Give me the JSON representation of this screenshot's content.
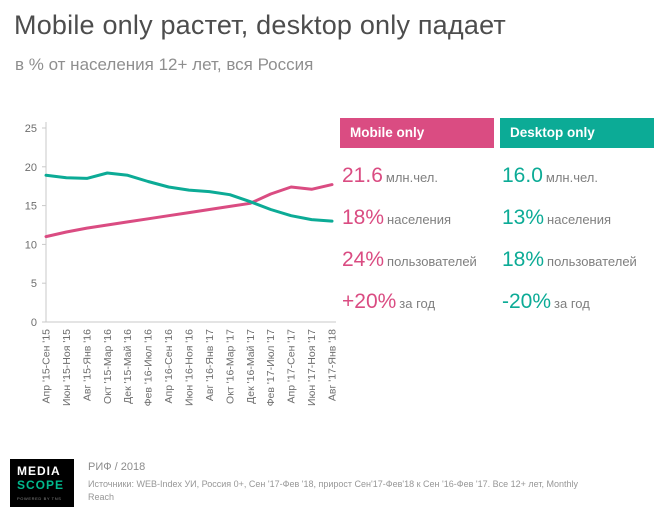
{
  "header": {
    "title": "Mobile only растет, desktop only падает",
    "subtitle": "в % от населения 12+ лет, вся Россия"
  },
  "chart_data": {
    "type": "line",
    "title": "",
    "xlabel": "",
    "ylabel": "",
    "ylim": [
      0,
      25
    ],
    "yticks": [
      0,
      5,
      10,
      15,
      20,
      25
    ],
    "grid": false,
    "legend": "none",
    "categories": [
      "Апр '15-Сен '15",
      "Июн '15-Ноя '15",
      "Авг '15-Янв '16",
      "Окт '15-Мар '16",
      "Дек '15-Май '16",
      "Фев '16-Июл '16",
      "Апр '16-Сен '16",
      "Июн '16-Ноя '16",
      "Авг '16-Янв '17",
      "Окт '16-Мар '17",
      "Дек '16-Май '17",
      "Фев '17-Июл '17",
      "Апр '17-Сен '17",
      "Июн '17-Ноя '17",
      "Авг '17-Янв '18"
    ],
    "series": [
      {
        "name": "Mobile only",
        "color": "#da4c82",
        "values": [
          11.0,
          11.6,
          12.1,
          12.5,
          12.9,
          13.3,
          13.7,
          14.1,
          14.5,
          14.9,
          15.3,
          16.5,
          17.4,
          17.1,
          17.7
        ]
      },
      {
        "name": "Desktop only",
        "color": "#0cab96",
        "values": [
          18.9,
          18.6,
          18.5,
          19.2,
          18.9,
          18.1,
          17.4,
          17.0,
          16.8,
          16.4,
          15.5,
          14.5,
          13.7,
          13.2,
          13.0
        ]
      }
    ]
  },
  "cards": [
    {
      "title": "Mobile only",
      "color": "#da4c82",
      "stats": [
        {
          "value": "21.6",
          "unit": "млн.чел."
        },
        {
          "value": "18%",
          "unit": "населения"
        },
        {
          "value": "24%",
          "unit": "пользователей"
        },
        {
          "value": "+20%",
          "unit": "за год"
        }
      ]
    },
    {
      "title": "Desktop only",
      "color": "#0cab96",
      "stats": [
        {
          "value": "16.0",
          "unit": "млн.чел."
        },
        {
          "value": "13%",
          "unit": "населения"
        },
        {
          "value": "18%",
          "unit": "пользователей"
        },
        {
          "value": "-20%",
          "unit": "за год"
        }
      ]
    }
  ],
  "footer": {
    "logo": {
      "line1": "MEDIA",
      "line2": "SCOPE",
      "tagline": "POWERED BY TNS"
    },
    "event": "РИФ / 2018",
    "source": "Источники: WEB-Index УИ, Россия 0+, Сен '17-Фев '18, прирост Сен'17-Фев'18 к Сен '16-Фев '17. Все 12+ лет, Monthly Reach"
  }
}
